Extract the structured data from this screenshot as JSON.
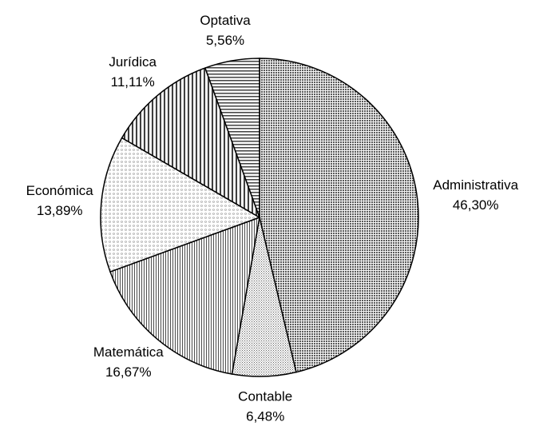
{
  "chart_data": {
    "type": "pie",
    "categories": [
      "Administrativa",
      "Contable",
      "Matemática",
      "Económica",
      "Jurídica",
      "Optativa"
    ],
    "values": [
      46.3,
      6.48,
      16.67,
      13.89,
      11.11,
      5.56
    ],
    "value_labels": [
      "46,30%",
      "6,48%",
      "16,67%",
      "13,89%",
      "11,11%",
      "5,56%"
    ],
    "colors": [
      "#8c8c8c",
      "#e0e0e0",
      "#d0d0d0",
      "#ffffff",
      "#b0b0b0",
      "#d8d8d8"
    ]
  }
}
